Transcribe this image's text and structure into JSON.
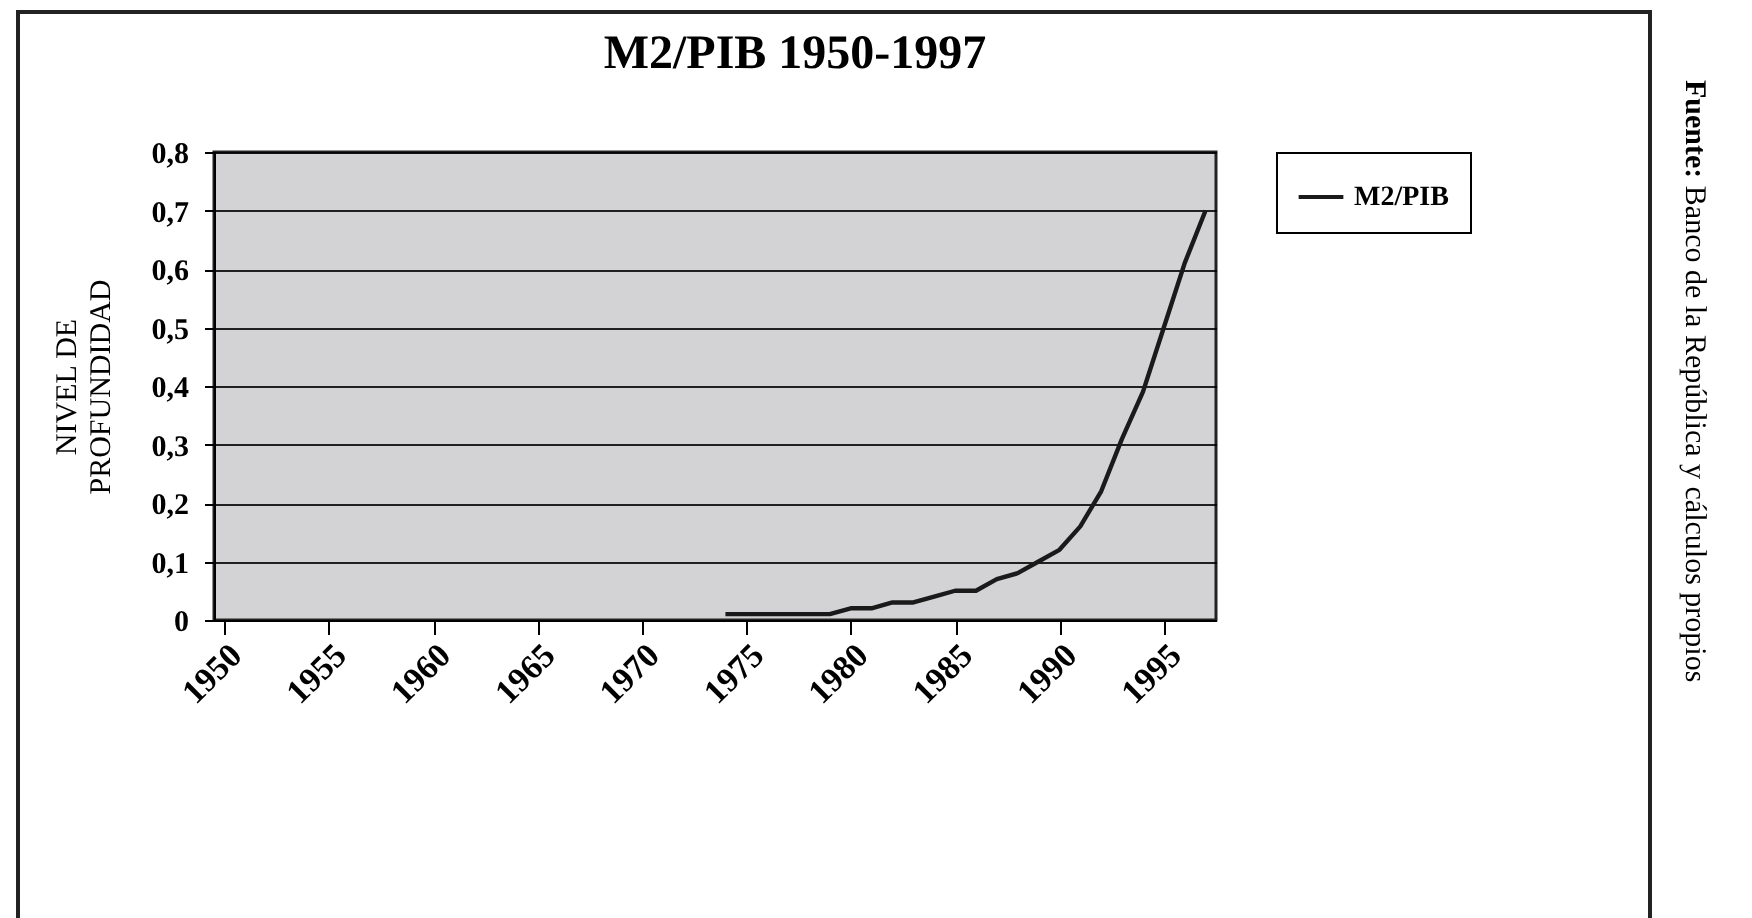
{
  "chart_data": {
    "type": "line",
    "title": "M2/PIB 1950-1997",
    "ylabel": "NIVEL DE\nPROFUNDIDAD",
    "annotations": [
      "Fuente: Banco de la República y cálculos propios"
    ],
    "x": [
      1974,
      1975,
      1976,
      1977,
      1978,
      1979,
      1980,
      1981,
      1982,
      1983,
      1984,
      1985,
      1986,
      1987,
      1988,
      1989,
      1990,
      1991,
      1992,
      1993,
      1994,
      1995,
      1996,
      1997
    ],
    "series": [
      {
        "name": "M2/PIB",
        "color": "#1a1a1a",
        "values": [
          0.01,
          0.01,
          0.01,
          0.01,
          0.01,
          0.01,
          0.02,
          0.02,
          0.03,
          0.03,
          0.04,
          0.05,
          0.05,
          0.07,
          0.08,
          0.1,
          0.12,
          0.16,
          0.22,
          0.31,
          0.39,
          0.5,
          0.61,
          0.7
        ]
      }
    ],
    "xlim": [
      1949.5,
      1997.5
    ],
    "xticks": [
      1950,
      1955,
      1960,
      1965,
      1970,
      1975,
      1980,
      1985,
      1990,
      1995
    ],
    "ylim": [
      0,
      0.8
    ],
    "yticks": [
      0,
      {
        "value": 0.1,
        "label": "0,1"
      },
      {
        "value": 0.2,
        "label": "0,2"
      },
      {
        "value": 0.3,
        "label": "0,3"
      },
      {
        "value": 0.4,
        "label": "0,4"
      },
      {
        "value": 0.5,
        "label": "0,5"
      },
      {
        "value": 0.6,
        "label": "0,6"
      },
      {
        "value": 0.7,
        "label": "0,7"
      },
      {
        "value": 0.8,
        "label": "0,8"
      }
    ],
    "grid": "y",
    "legend": "right",
    "marker": "none",
    "line_style": "solid"
  }
}
